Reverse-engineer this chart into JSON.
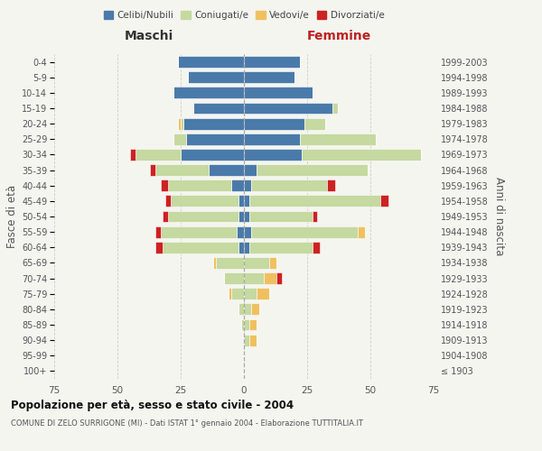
{
  "age_groups": [
    "100+",
    "95-99",
    "90-94",
    "85-89",
    "80-84",
    "75-79",
    "70-74",
    "65-69",
    "60-64",
    "55-59",
    "50-54",
    "45-49",
    "40-44",
    "35-39",
    "30-34",
    "25-29",
    "20-24",
    "15-19",
    "10-14",
    "5-9",
    "0-4"
  ],
  "birth_years": [
    "≤ 1903",
    "1904-1908",
    "1909-1913",
    "1914-1918",
    "1919-1923",
    "1924-1928",
    "1929-1933",
    "1934-1938",
    "1939-1943",
    "1944-1948",
    "1949-1953",
    "1954-1958",
    "1959-1963",
    "1964-1968",
    "1969-1973",
    "1974-1978",
    "1979-1983",
    "1984-1988",
    "1989-1993",
    "1994-1998",
    "1999-2003"
  ],
  "colors": {
    "celibi": "#4a7aaa",
    "coniugati": "#c5d9a0",
    "vedovi": "#f0c060",
    "divorziati": "#cc2222"
  },
  "males": {
    "celibi": [
      0,
      0,
      0,
      0,
      0,
      0,
      0,
      0,
      2,
      3,
      2,
      2,
      5,
      14,
      25,
      23,
      24,
      20,
      28,
      22,
      26
    ],
    "coniugati": [
      0,
      0,
      0,
      1,
      2,
      5,
      8,
      11,
      30,
      30,
      28,
      27,
      25,
      21,
      18,
      5,
      1,
      0,
      0,
      0,
      0
    ],
    "vedovi": [
      0,
      0,
      0,
      0,
      0,
      1,
      0,
      1,
      0,
      0,
      0,
      0,
      0,
      0,
      0,
      0,
      1,
      0,
      0,
      0,
      0
    ],
    "divorziati": [
      0,
      0,
      0,
      0,
      0,
      0,
      0,
      0,
      3,
      2,
      2,
      2,
      3,
      2,
      2,
      0,
      0,
      0,
      0,
      0,
      0
    ]
  },
  "females": {
    "celibi": [
      0,
      0,
      0,
      0,
      0,
      0,
      0,
      0,
      2,
      3,
      2,
      2,
      3,
      5,
      23,
      22,
      24,
      35,
      27,
      20,
      22
    ],
    "coniugati": [
      0,
      0,
      2,
      2,
      3,
      5,
      8,
      10,
      25,
      42,
      25,
      52,
      30,
      44,
      47,
      30,
      8,
      2,
      0,
      0,
      0
    ],
    "vedovi": [
      0,
      0,
      3,
      3,
      3,
      5,
      5,
      3,
      0,
      3,
      0,
      0,
      0,
      0,
      0,
      0,
      0,
      0,
      0,
      0,
      0
    ],
    "divorziati": [
      0,
      0,
      0,
      0,
      0,
      0,
      2,
      0,
      3,
      0,
      2,
      3,
      3,
      0,
      0,
      0,
      0,
      0,
      0,
      0,
      0
    ]
  },
  "xlim": 75,
  "title": "Popolazione per età, sesso e stato civile - 2004",
  "subtitle": "COMUNE DI ZELO SURRIGONE (MI) - Dati ISTAT 1° gennaio 2004 - Elaborazione TUTTITALIA.IT",
  "ylabel_left": "Fasce di età",
  "ylabel_right": "Anni di nascita",
  "xlabel_maschi": "Maschi",
  "xlabel_femmine": "Femmine",
  "legend_labels": [
    "Celibi/Nubili",
    "Coniugati/e",
    "Vedovi/e",
    "Divorziati/e"
  ],
  "background_color": "#f5f5f0",
  "bar_edge_color": "white",
  "grid_color": "#cccccc"
}
